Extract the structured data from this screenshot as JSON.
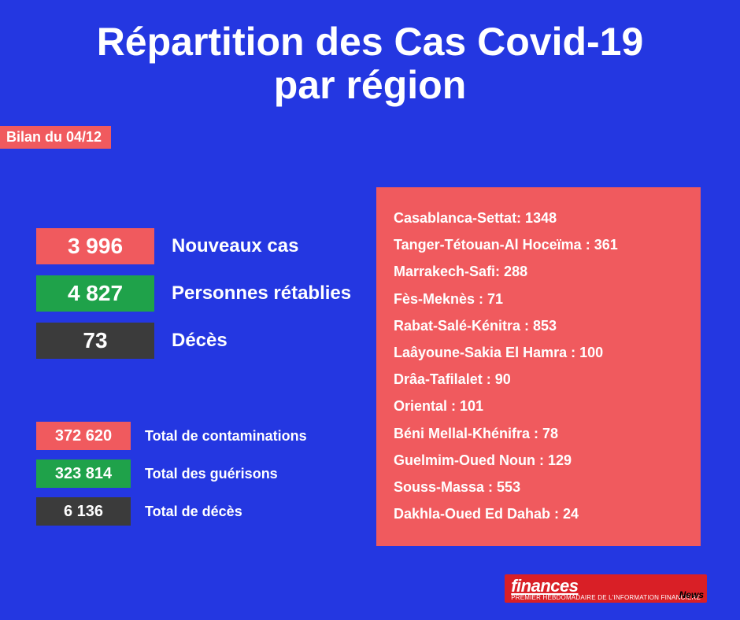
{
  "title_line1": "Répartition des Cas Covid-19",
  "title_line2": "par région",
  "date_label": "Bilan du 04/12",
  "colors": {
    "bg": "#2437e1",
    "red": "#f05a5e",
    "green": "#1fa24a",
    "gray": "#3b3b3b",
    "logo_red": "#d91f26"
  },
  "daily": [
    {
      "value": "3 996",
      "label": "Nouveaux cas",
      "color": "#f05a5e"
    },
    {
      "value": "4 827",
      "label": "Personnes rétablies",
      "color": "#1fa24a"
    },
    {
      "value": "73",
      "label": "Décès",
      "color": "#3b3b3b"
    }
  ],
  "totals": [
    {
      "value": "372 620",
      "label": "Total de contaminations",
      "color": "#f05a5e"
    },
    {
      "value": "323 814",
      "label": "Total des guérisons",
      "color": "#1fa24a"
    },
    {
      "value": "6 136",
      "label": "Total de décès",
      "color": "#3b3b3b"
    }
  ],
  "regions": [
    "Casablanca-Settat: 1348",
    "Tanger-Tétouan-Al Hoceïma : 361",
    "Marrakech-Safi: 288",
    "Fès-Meknès : 71",
    "Rabat-Salé-Kénitra : 853",
    "Laâyoune-Sakia El Hamra : 100",
    "Drâa-Tafilalet : 90",
    "Oriental : 101",
    "Béni Mellal-Khénifra : 78",
    "Guelmim-Oued Noun : 129",
    "Souss-Massa : 553",
    "Dakhla-Oued Ed Dahab : 24"
  ],
  "logo": {
    "word": "finances",
    "sub": "PREMIER HEBDOMADAIRE DE L'INFORMATION FINANCIÈRE",
    "news": "News"
  }
}
